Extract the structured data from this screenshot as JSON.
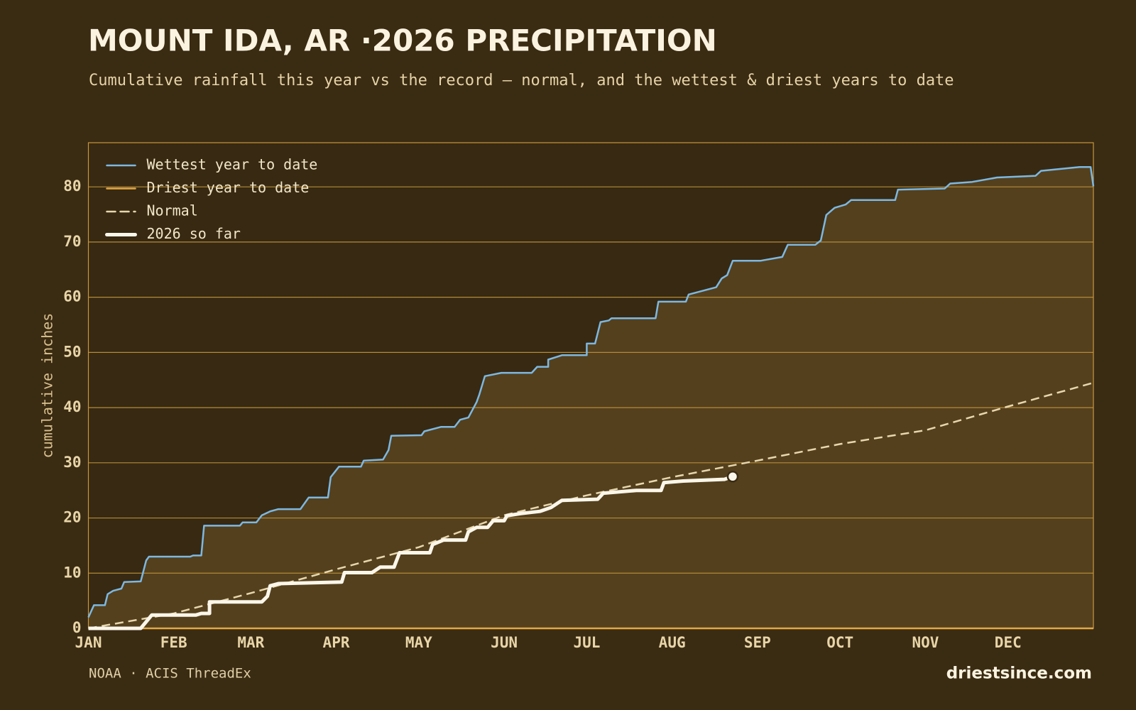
{
  "chart_data": {
    "type": "line",
    "title": "MOUNT IDA, AR ·2026 PRECIPITATION",
    "subtitle": "Cumulative rainfall this year vs the record — normal, and the wettest & driest years to date",
    "y_label": "cumulative inches",
    "source": "NOAA · ACIS ThreadEx",
    "credit": "driestsince.com",
    "xlim": [
      0,
      365
    ],
    "ylim": [
      0,
      88
    ],
    "xticks": [
      {
        "value": 0,
        "label": "JAN"
      },
      {
        "value": 31,
        "label": "FEB"
      },
      {
        "value": 59,
        "label": "MAR"
      },
      {
        "value": 90,
        "label": "APR"
      },
      {
        "value": 120,
        "label": "MAY"
      },
      {
        "value": 151,
        "label": "JUN"
      },
      {
        "value": 181,
        "label": "JUL"
      },
      {
        "value": 212,
        "label": "AUG"
      },
      {
        "value": 243,
        "label": "SEP"
      },
      {
        "value": 273,
        "label": "OCT"
      },
      {
        "value": 304,
        "label": "NOV"
      },
      {
        "value": 334,
        "label": "DEC"
      }
    ],
    "yticks": [
      0,
      10,
      20,
      30,
      40,
      50,
      60,
      70,
      80
    ],
    "grid": true,
    "legend": "top-left",
    "fill_color": "#54401d",
    "series": [
      {
        "name": "Wettest year to date",
        "color": "#7db8e2",
        "line_width": 2.5,
        "fill_to_driest": true,
        "x": [
          0,
          2,
          6,
          7,
          9,
          12,
          13,
          19,
          21,
          22,
          37,
          38,
          41,
          42,
          55,
          56,
          61,
          63,
          66,
          69,
          77,
          80,
          87,
          88,
          91,
          99,
          100,
          107,
          109,
          110,
          121,
          122,
          128,
          133,
          135,
          138,
          141,
          142,
          144,
          150,
          161,
          163,
          167,
          167,
          172,
          181,
          181,
          184,
          186,
          189,
          190,
          206,
          207,
          217,
          218,
          228,
          230,
          232,
          234,
          244,
          252,
          254,
          264,
          266,
          268,
          271,
          275,
          277,
          293,
          294,
          311,
          313,
          321,
          330,
          344,
          346,
          360,
          364,
          365
        ],
        "values": [
          2.0,
          4.2,
          4.2,
          6.2,
          6.8,
          7.2,
          8.4,
          8.5,
          12.3,
          13.0,
          13.0,
          13.2,
          13.2,
          18.6,
          18.6,
          19.2,
          19.2,
          20.5,
          21.2,
          21.6,
          21.6,
          23.7,
          23.7,
          27.4,
          29.3,
          29.3,
          30.4,
          30.6,
          32.3,
          34.9,
          35.0,
          35.7,
          36.5,
          36.5,
          37.8,
          38.2,
          41.0,
          42.4,
          45.7,
          46.3,
          46.3,
          47.4,
          47.4,
          48.7,
          49.5,
          49.5,
          51.6,
          51.6,
          55.5,
          55.8,
          56.2,
          56.2,
          59.2,
          59.2,
          60.5,
          61.8,
          63.4,
          64.0,
          66.6,
          66.6,
          67.3,
          69.5,
          69.5,
          70.3,
          74.9,
          76.2,
          76.8,
          77.6,
          77.6,
          79.5,
          79.7,
          80.6,
          80.9,
          81.7,
          82.0,
          82.9,
          83.6,
          83.6,
          80.1
        ]
      },
      {
        "name": "Driest year to date",
        "color": "#e2a846",
        "line_width": 2.5,
        "x": [
          0,
          365
        ],
        "values": [
          0,
          0
        ]
      },
      {
        "name": "Normal",
        "color": "#e8d7ae",
        "line_width": 2.5,
        "dashed": true,
        "x": [
          0,
          31,
          59,
          90,
          120,
          151,
          181,
          212,
          243,
          273,
          304,
          334,
          365
        ],
        "values": [
          0,
          2.7,
          6.4,
          10.7,
          14.7,
          20.5,
          24.1,
          27.4,
          30.4,
          33.4,
          35.9,
          40.2,
          44.5
        ]
      },
      {
        "name": "2026 so far",
        "color": "#fbf6ea",
        "line_width": 5,
        "end_marker": true,
        "x": [
          0,
          19,
          23,
          39,
          41,
          44,
          44,
          63,
          65,
          66,
          69,
          92,
          93,
          103,
          106,
          111,
          113,
          124,
          125,
          129,
          137,
          138,
          141,
          145,
          147,
          151,
          152,
          157,
          164,
          168,
          172,
          185,
          187,
          199,
          208,
          209,
          216,
          231,
          234
        ],
        "values": [
          0,
          0,
          2.4,
          2.4,
          2.7,
          2.7,
          4.8,
          4.8,
          5.8,
          7.7,
          8.1,
          8.4,
          10.1,
          10.1,
          11.1,
          11.1,
          13.7,
          13.7,
          15.2,
          16.0,
          16.0,
          17.5,
          18.3,
          18.3,
          19.5,
          19.5,
          20.4,
          20.8,
          21.2,
          21.9,
          23.2,
          23.4,
          24.5,
          25.0,
          25.0,
          26.4,
          26.7,
          27.0,
          27.5
        ]
      }
    ]
  }
}
